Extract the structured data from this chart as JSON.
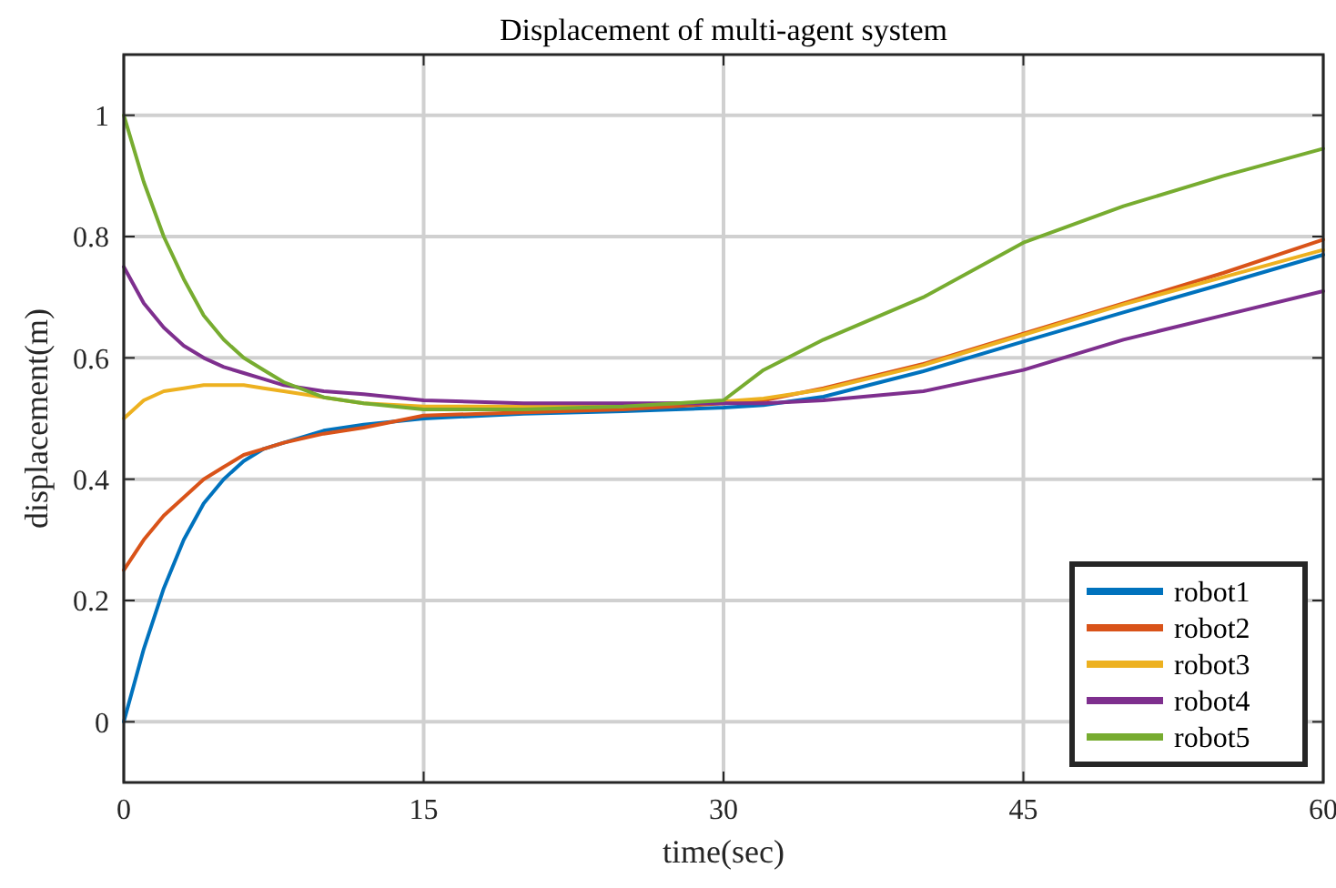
{
  "chart_data": {
    "type": "line",
    "title": "Displacement of multi-agent system",
    "xlabel": "time(sec)",
    "ylabel": "displacement(m)",
    "x": [
      0,
      1,
      2,
      3,
      4,
      5,
      6,
      7,
      8,
      10,
      12,
      15,
      20,
      25,
      30,
      32,
      35,
      40,
      45,
      50,
      55,
      60
    ],
    "series": [
      {
        "name": "robot1",
        "color": "#0072bd",
        "values": [
          0,
          0.12,
          0.22,
          0.3,
          0.36,
          0.4,
          0.43,
          0.45,
          0.46,
          0.48,
          0.49,
          0.5,
          0.508,
          0.512,
          0.518,
          0.522,
          0.536,
          0.578,
          0.627,
          0.675,
          0.722,
          0.77
        ]
      },
      {
        "name": "robot2",
        "color": "#d95319",
        "values": [
          0.25,
          0.3,
          0.34,
          0.37,
          0.4,
          0.42,
          0.44,
          0.45,
          0.46,
          0.475,
          0.485,
          0.505,
          0.51,
          0.515,
          0.525,
          0.53,
          0.55,
          0.59,
          0.64,
          0.69,
          0.74,
          0.795
        ]
      },
      {
        "name": "robot3",
        "color": "#edb120",
        "values": [
          0.5,
          0.53,
          0.545,
          0.55,
          0.555,
          0.555,
          0.555,
          0.55,
          0.545,
          0.535,
          0.525,
          0.52,
          0.52,
          0.522,
          0.528,
          0.533,
          0.548,
          0.588,
          0.638,
          0.688,
          0.733,
          0.778
        ]
      },
      {
        "name": "robot4",
        "color": "#7e2f8e",
        "values": [
          0.75,
          0.69,
          0.65,
          0.62,
          0.6,
          0.585,
          0.575,
          0.565,
          0.555,
          0.545,
          0.54,
          0.53,
          0.525,
          0.525,
          0.525,
          0.525,
          0.53,
          0.545,
          0.58,
          0.63,
          0.67,
          0.71
        ]
      },
      {
        "name": "robot5",
        "color": "#77ac30",
        "values": [
          1.0,
          0.89,
          0.8,
          0.73,
          0.67,
          0.63,
          0.6,
          0.58,
          0.56,
          0.535,
          0.525,
          0.515,
          0.515,
          0.52,
          0.53,
          0.58,
          0.63,
          0.7,
          0.79,
          0.85,
          0.9,
          0.945
        ]
      }
    ],
    "xlim": [
      0,
      60
    ],
    "xticks": [
      0,
      15,
      30,
      45,
      60
    ],
    "ylim": [
      -0.1,
      1.1
    ],
    "yticks": [
      0,
      0.2,
      0.4,
      0.6,
      0.8,
      1
    ],
    "grid": true,
    "legend": "bottom right",
    "line_style": "solid",
    "marker": "none"
  }
}
